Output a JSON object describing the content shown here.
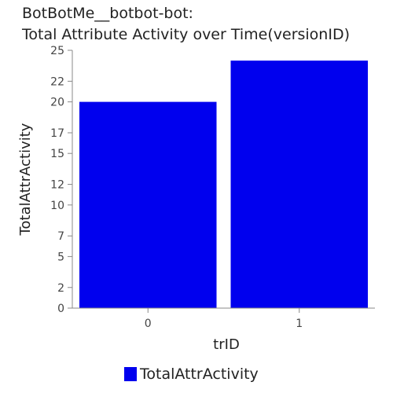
{
  "chart_data": {
    "type": "bar",
    "title_lines": [
      "BotBotMe__botbot-bot:",
      "Total Attribute Activity over Time(versionID)"
    ],
    "xlabel": "trID",
    "ylabel": "TotalAttrActivity",
    "categories": [
      "0",
      "1"
    ],
    "series": [
      {
        "name": "TotalAttrActivity",
        "values": [
          20,
          24
        ],
        "color": "#0000ee"
      }
    ],
    "ylim": [
      0,
      25
    ],
    "yticks": [
      0,
      2,
      5,
      7,
      10,
      12,
      15,
      17,
      20,
      22,
      25
    ],
    "legend_position": "bottom-center",
    "grid": false
  }
}
